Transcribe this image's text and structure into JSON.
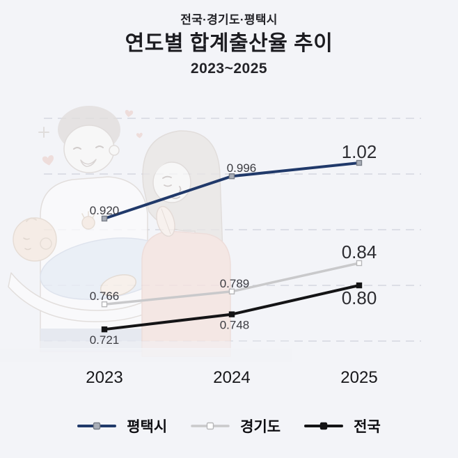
{
  "header": {
    "region_line": "전국·경기도·평택시",
    "title": "연도별 합계출산율 추이",
    "period": "2023~2025"
  },
  "chart_data": {
    "type": "line",
    "title": "연도별 합계출산율 추이",
    "subtitle": "전국·경기도·평택시",
    "period": "2023~2025",
    "categories": [
      "2023",
      "2024",
      "2025"
    ],
    "series": [
      {
        "key": "pyeongtaek",
        "name": "평택시",
        "values": [
          0.92,
          0.996,
          1.02
        ],
        "labels": [
          "0.920",
          "0.996",
          "1.02"
        ],
        "label_side": "above",
        "label_dx": [
          0,
          14,
          0
        ],
        "color": "#20396a",
        "line_width": 4,
        "marker": {
          "shape": "square",
          "fill": "#a9aeb8",
          "stroke": "#787d87"
        }
      },
      {
        "key": "gyeonggi",
        "name": "경기도",
        "values": [
          0.766,
          0.789,
          0.84
        ],
        "labels": [
          "0.766",
          "0.789",
          "0.84"
        ],
        "label_side": "above",
        "label_dx": [
          0,
          4,
          0
        ],
        "color": "#c9c9cb",
        "line_width": 3.5,
        "marker": {
          "shape": "square",
          "fill": "#ffffff",
          "stroke": "#b7b7b9"
        }
      },
      {
        "key": "national",
        "name": "전국",
        "values": [
          0.721,
          0.748,
          0.8
        ],
        "labels": [
          "0.721",
          "0.748",
          "0.80"
        ],
        "label_side": "below",
        "label_dx": [
          0,
          4,
          0
        ],
        "color": "#141416",
        "line_width": 4,
        "marker": {
          "shape": "square",
          "fill": "#141416",
          "stroke": "#141416"
        }
      }
    ],
    "ylim": [
      0.7,
      1.1
    ],
    "gridline_values": [
      0.7,
      0.8,
      0.9,
      1.0,
      1.1
    ],
    "grid_style": "dashed",
    "legend_position": "bottom",
    "last_label_emphasized": true,
    "xlabel": "",
    "ylabel": ""
  },
  "colors": {
    "background": "#f3f4f8",
    "grid": "#cbced8",
    "label_small": "#3c3c42",
    "label_large": "#2c2c31",
    "axis_text": "#17171a",
    "legend_text": "#0e0e12",
    "title_text": "#232328"
  }
}
